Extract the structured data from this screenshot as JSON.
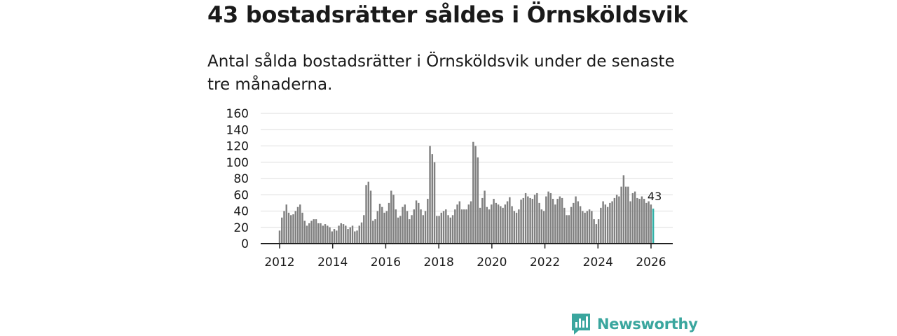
{
  "header": {
    "title": "43 bostadsrätter såldes i Örnsköldsvik",
    "subtitle": "Antal sålda bostadsrätter i Örnsköldsvik under de senaste tre månaderna."
  },
  "brand": {
    "name": "Newsworthy",
    "color": "#3aa69e"
  },
  "colors": {
    "bar": "#808080",
    "highlight": "#2fb0a6",
    "grid": "#dddddd",
    "axis": "#222222"
  },
  "chart_data": {
    "type": "bar",
    "title": "Antal sålda bostadsrätter i Örnsköldsvik under de senaste tre månaderna.",
    "xlabel": "",
    "ylabel": "",
    "ylim": [
      0,
      160
    ],
    "yticks": [
      0,
      20,
      40,
      60,
      80,
      100,
      120,
      140,
      160
    ],
    "xticks": [
      "2012",
      "2014",
      "2016",
      "2018",
      "2020",
      "2022",
      "2024",
      "2026"
    ],
    "x_start": 2012,
    "x_end": 2026.083,
    "grid": true,
    "highlight_label": "43",
    "values": [
      16,
      32,
      40,
      48,
      38,
      35,
      36,
      40,
      45,
      48,
      38,
      28,
      22,
      25,
      28,
      30,
      30,
      25,
      25,
      22,
      24,
      22,
      20,
      15,
      18,
      16,
      22,
      25,
      24,
      22,
      18,
      20,
      22,
      15,
      16,
      22,
      26,
      35,
      72,
      76,
      65,
      28,
      30,
      40,
      49,
      45,
      38,
      40,
      50,
      65,
      60,
      42,
      32,
      34,
      45,
      48,
      40,
      30,
      35,
      42,
      53,
      50,
      42,
      35,
      40,
      55,
      120,
      110,
      100,
      34,
      34,
      38,
      40,
      42,
      35,
      32,
      35,
      42,
      48,
      52,
      42,
      42,
      42,
      48,
      52,
      125,
      120,
      106,
      44,
      56,
      65,
      45,
      42,
      48,
      55,
      50,
      48,
      46,
      44,
      48,
      52,
      57,
      46,
      40,
      38,
      42,
      54,
      56,
      62,
      58,
      56,
      55,
      60,
      62,
      50,
      42,
      40,
      58,
      64,
      62,
      55,
      48,
      55,
      58,
      56,
      44,
      35,
      35,
      45,
      50,
      58,
      52,
      46,
      40,
      38,
      40,
      42,
      40,
      30,
      24,
      30,
      44,
      52,
      48,
      45,
      50,
      52,
      56,
      60,
      58,
      70,
      84,
      70,
      70,
      52,
      62,
      64,
      56,
      55,
      58,
      55,
      50,
      52,
      48,
      43
    ]
  }
}
